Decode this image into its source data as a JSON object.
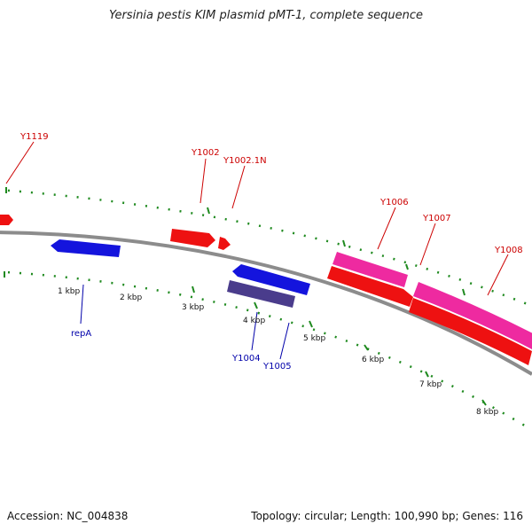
{
  "title": "Yersinia pestis KIM plasmid pMT-1, complete sequence",
  "footer": {
    "accession": "Accession: NC_004838",
    "stats": "Topology: circular; Length: 100,990 bp; Genes: 116"
  },
  "colors": {
    "backbone": "#8c8c8c",
    "tick_dots": "#1f8a1f",
    "forward_gene": "#ee1111",
    "forward_gene_alt": "#ee2aa0",
    "reverse_gene": "#1414dd",
    "reverse_gene_alt": "#4a3c8c",
    "forward_label": "#cc0000",
    "reverse_label": "#0000aa"
  },
  "tick_labels": [
    "1 kbp",
    "2 kbp",
    "3 kbp",
    "4 kbp",
    "5 kbp",
    "6 kbp",
    "7 kbp",
    "8 kbp"
  ],
  "genes": [
    {
      "label": "Y1119",
      "strand": "forward"
    },
    {
      "label": "Y1002",
      "strand": "forward"
    },
    {
      "label": "Y1002.1N",
      "strand": "forward"
    },
    {
      "label": "Y1006",
      "strand": "forward"
    },
    {
      "label": "Y1007",
      "strand": "forward"
    },
    {
      "label": "Y1008",
      "strand": "forward"
    },
    {
      "label": "repA",
      "strand": "reverse"
    },
    {
      "label": "Y1004",
      "strand": "reverse"
    },
    {
      "label": "Y1005",
      "strand": "reverse"
    }
  ]
}
